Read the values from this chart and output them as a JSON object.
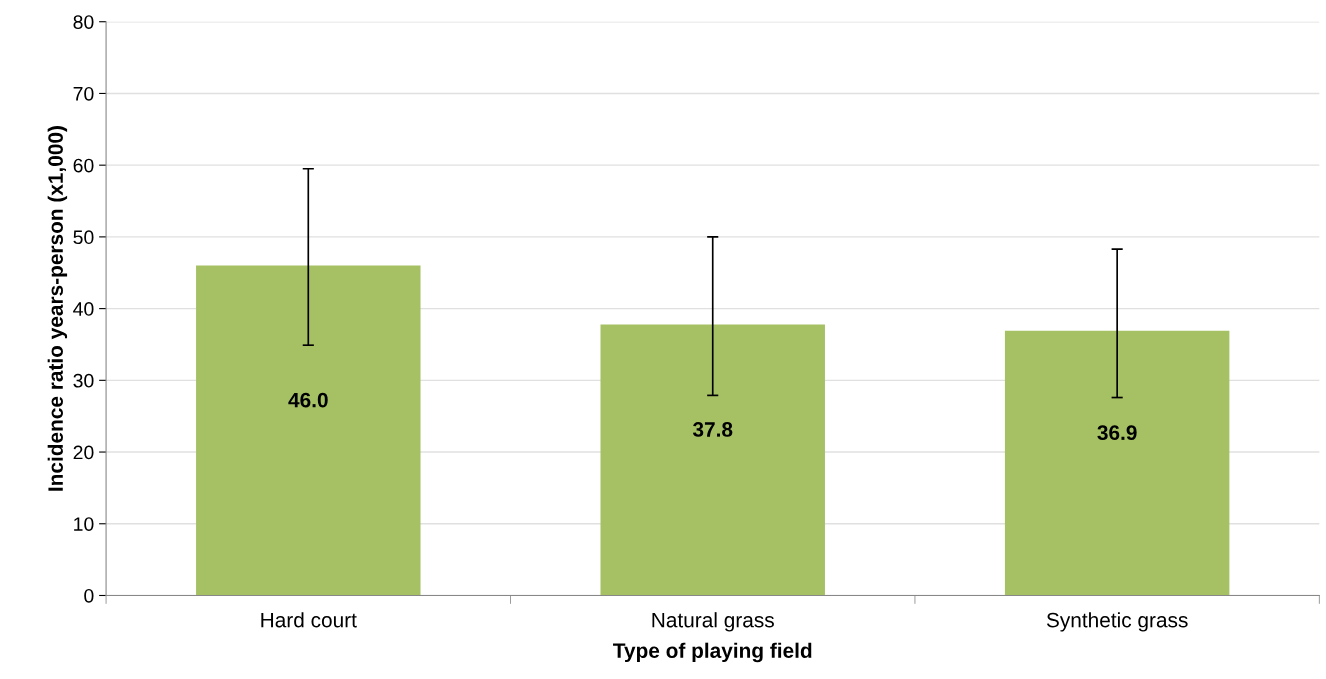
{
  "chart_data": {
    "type": "bar",
    "xlabel": "Type of playing field",
    "ylabel": "Incidence ratio years-person (x1,000)",
    "categories": [
      "Hard court",
      "Natural grass",
      "Synthetic grass"
    ],
    "values": [
      46.0,
      37.8,
      36.9
    ],
    "color": "#a5c164",
    "errors": [
      [
        34.9,
        59.5
      ],
      [
        27.9,
        50.0
      ],
      [
        27.6,
        48.3
      ]
    ],
    "value_labels": [
      "46.0",
      "37.8",
      "36.9"
    ],
    "ylim": [
      0,
      80
    ],
    "yticks": [
      0,
      10,
      20,
      30,
      40,
      50,
      60,
      70,
      80
    ],
    "grid": "y"
  }
}
